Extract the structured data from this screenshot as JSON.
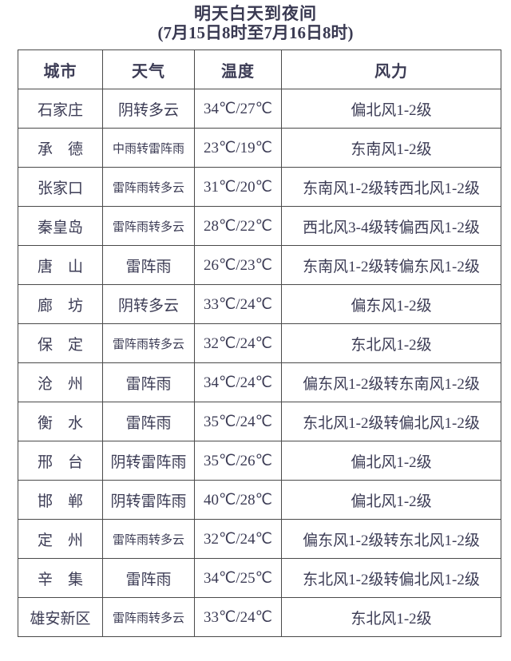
{
  "title": {
    "line1": "明天白天到夜间",
    "line2": "(7月15日8时至7月16日8时)"
  },
  "colors": {
    "text": "#3c3c55",
    "title_text": "#3a3a52",
    "temperature_text": "#bf3a30",
    "table_border": "#4a4a4a",
    "background": "#ffffff"
  },
  "table": {
    "headers": [
      "城市",
      "天气",
      "温度",
      "风力"
    ],
    "rows": [
      {
        "city": "石家庄",
        "weather": "阴转多云",
        "temp": "34℃/27℃",
        "wind": "偏北风1-2级"
      },
      {
        "city": "承　德",
        "weather": "中雨转雷阵雨",
        "temp": "23℃/19℃",
        "wind": "东南风1-2级"
      },
      {
        "city": "张家口",
        "weather": "雷阵雨转多云",
        "temp": "31℃/20℃",
        "wind": "东南风1-2级转西北风1-2级"
      },
      {
        "city": "秦皇岛",
        "weather": "雷阵雨转多云",
        "temp": "28℃/22℃",
        "wind": "西北风3-4级转偏西风1-2级"
      },
      {
        "city": "唐　山",
        "weather": "雷阵雨",
        "temp": "26℃/23℃",
        "wind": "东南风1-2级转偏东风1-2级"
      },
      {
        "city": "廊　坊",
        "weather": "阴转多云",
        "temp": "33℃/24℃",
        "wind": "偏东风1-2级"
      },
      {
        "city": "保　定",
        "weather": "雷阵雨转多云",
        "temp": "32℃/24℃",
        "wind": "东北风1-2级"
      },
      {
        "city": "沧　州",
        "weather": "雷阵雨",
        "temp": "34℃/24℃",
        "wind": "偏东风1-2级转东南风1-2级"
      },
      {
        "city": "衡　水",
        "weather": "雷阵雨",
        "temp": "35℃/24℃",
        "wind": "东北风1-2级转偏北风1-2级"
      },
      {
        "city": "邢　台",
        "weather": "阴转雷阵雨",
        "temp": "35℃/26℃",
        "wind": "偏北风1-2级"
      },
      {
        "city": "邯　郸",
        "weather": "阴转雷阵雨",
        "temp": "40℃/28℃",
        "wind": "偏北风1-2级"
      },
      {
        "city": "定　州",
        "weather": "雷阵雨转多云",
        "temp": "32℃/24℃",
        "wind": "偏东风1-2级转东北风1-2级"
      },
      {
        "city": "辛　集",
        "weather": "雷阵雨",
        "temp": "34℃/25℃",
        "wind": "东北风1-2级转偏北风1-2级"
      },
      {
        "city": "雄安新区",
        "weather": "雷阵雨转多云",
        "temp": "33℃/24℃",
        "wind": "东北风1-2级"
      }
    ]
  }
}
